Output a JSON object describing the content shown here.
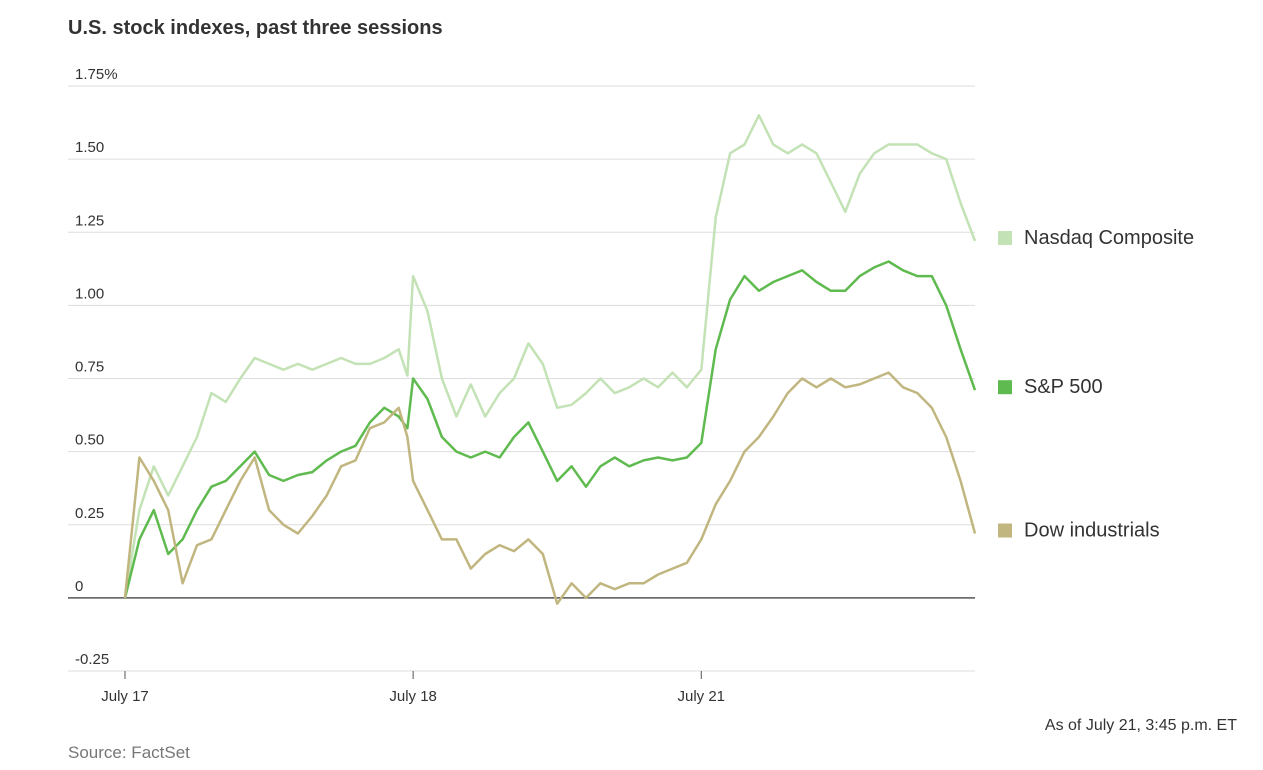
{
  "chart_data": {
    "type": "line",
    "title": "U.S. stock indexes, past three sessions",
    "note": "As of July 21, 3:45 p.m. ET",
    "source": "Source: FactSet",
    "x": [
      0,
      0.05,
      0.1,
      0.15,
      0.2,
      0.25,
      0.3,
      0.35,
      0.4,
      0.45,
      0.5,
      0.55,
      0.6,
      0.65,
      0.7,
      0.75,
      0.8,
      0.85,
      0.9,
      0.95,
      0.98,
      1.0,
      1.05,
      1.1,
      1.15,
      1.2,
      1.25,
      1.3,
      1.35,
      1.4,
      1.45,
      1.5,
      1.55,
      1.6,
      1.65,
      1.7,
      1.75,
      1.8,
      1.85,
      1.9,
      1.95,
      2.0,
      2.05,
      2.1,
      2.15,
      2.2,
      2.25,
      2.3,
      2.35,
      2.4,
      2.45,
      2.5,
      2.55,
      2.6,
      2.65,
      2.7,
      2.75,
      2.8,
      2.85,
      2.9,
      2.95
    ],
    "xlim": [
      0,
      2.95
    ],
    "xticks": [
      {
        "value": 0,
        "label": "July 17"
      },
      {
        "value": 1,
        "label": "July 18"
      },
      {
        "value": 2,
        "label": "July 21"
      }
    ],
    "ylim": [
      -0.25,
      1.75
    ],
    "yticks": [
      {
        "value": 1.75,
        "label": "1.75%"
      },
      {
        "value": 1.5,
        "label": "1.50"
      },
      1.25,
      {
        "value": 1,
        "label": "1.00"
      },
      0.75,
      {
        "value": 0.5,
        "label": "0.50"
      },
      0.25,
      0,
      -0.25
    ],
    "grid": true,
    "series": [
      {
        "name": "Nasdaq Composite",
        "color": "#c3e2b5",
        "values": [
          0,
          0.3,
          0.45,
          0.35,
          0.45,
          0.55,
          0.7,
          0.67,
          0.75,
          0.82,
          0.8,
          0.78,
          0.8,
          0.78,
          0.8,
          0.82,
          0.8,
          0.8,
          0.82,
          0.85,
          0.76,
          1.1,
          0.98,
          0.75,
          0.62,
          0.73,
          0.62,
          0.7,
          0.75,
          0.87,
          0.8,
          0.65,
          0.66,
          0.7,
          0.75,
          0.7,
          0.72,
          0.75,
          0.72,
          0.77,
          0.72,
          0.78,
          1.3,
          1.52,
          1.55,
          1.65,
          1.55,
          1.52,
          1.55,
          1.52,
          1.42,
          1.32,
          1.45,
          1.52,
          1.55,
          1.55,
          1.55,
          1.52,
          1.5,
          1.35,
          1.22
        ]
      },
      {
        "name": "S&P 500",
        "color": "#5fba4f",
        "values": [
          0,
          0.2,
          0.3,
          0.15,
          0.2,
          0.3,
          0.38,
          0.4,
          0.45,
          0.5,
          0.42,
          0.4,
          0.42,
          0.43,
          0.47,
          0.5,
          0.52,
          0.6,
          0.65,
          0.62,
          0.58,
          0.75,
          0.68,
          0.55,
          0.5,
          0.48,
          0.5,
          0.48,
          0.55,
          0.6,
          0.5,
          0.4,
          0.45,
          0.38,
          0.45,
          0.48,
          0.45,
          0.47,
          0.48,
          0.47,
          0.48,
          0.53,
          0.85,
          1.02,
          1.1,
          1.05,
          1.08,
          1.1,
          1.12,
          1.08,
          1.05,
          1.05,
          1.1,
          1.13,
          1.15,
          1.12,
          1.1,
          1.1,
          1.0,
          0.85,
          0.71
        ]
      },
      {
        "name": "Dow industrials",
        "color": "#c1b67f",
        "values": [
          0,
          0.48,
          0.4,
          0.3,
          0.05,
          0.18,
          0.2,
          0.3,
          0.4,
          0.48,
          0.3,
          0.25,
          0.22,
          0.28,
          0.35,
          0.45,
          0.47,
          0.58,
          0.6,
          0.65,
          0.55,
          0.4,
          0.3,
          0.2,
          0.2,
          0.1,
          0.15,
          0.18,
          0.16,
          0.2,
          0.15,
          -0.02,
          0.05,
          0,
          0.05,
          0.03,
          0.05,
          0.05,
          0.08,
          0.1,
          0.12,
          0.2,
          0.32,
          0.4,
          0.5,
          0.55,
          0.62,
          0.7,
          0.75,
          0.72,
          0.75,
          0.72,
          0.73,
          0.75,
          0.77,
          0.72,
          0.7,
          0.65,
          0.55,
          0.4,
          0.22
        ]
      }
    ]
  }
}
